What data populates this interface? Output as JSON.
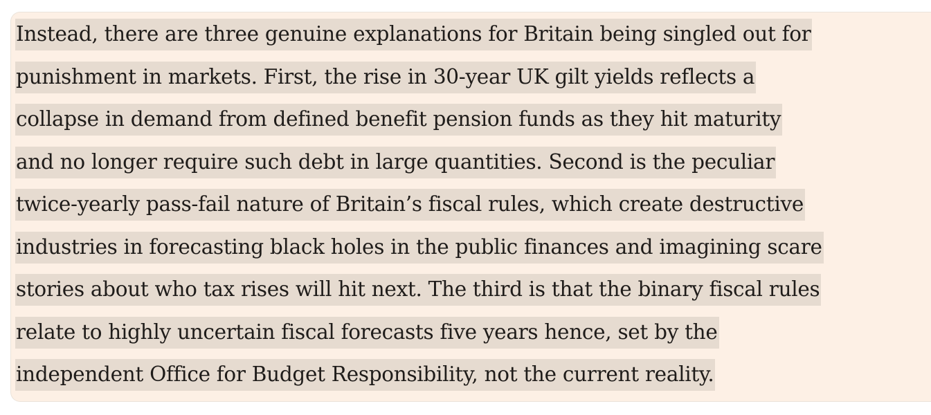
{
  "article": {
    "lines": [
      "Instead, there are three genuine explanations for Britain being singled out for",
      "punishment in markets. First, the rise in 30-year UK gilt yields reflects a",
      "collapse in demand from defined benefit pension funds as they hit maturity",
      "and no longer require such debt in large quantities. Second is the peculiar",
      "twice-yearly pass-fail nature of Britain’s fiscal rules, which create destructive",
      "industries in forecasting black holes in the public finances and imagining scare",
      "stories about who tax rises will hit next. The third is that the binary fiscal rules",
      "relate to highly uncertain fiscal forecasts five years hence, set by the",
      "independent Office for Budget Responsibility, not the current reality."
    ]
  },
  "colors": {
    "card_background": "#fdf0e5",
    "highlight": "#e6dbd0",
    "text": "#1f1c1a"
  }
}
